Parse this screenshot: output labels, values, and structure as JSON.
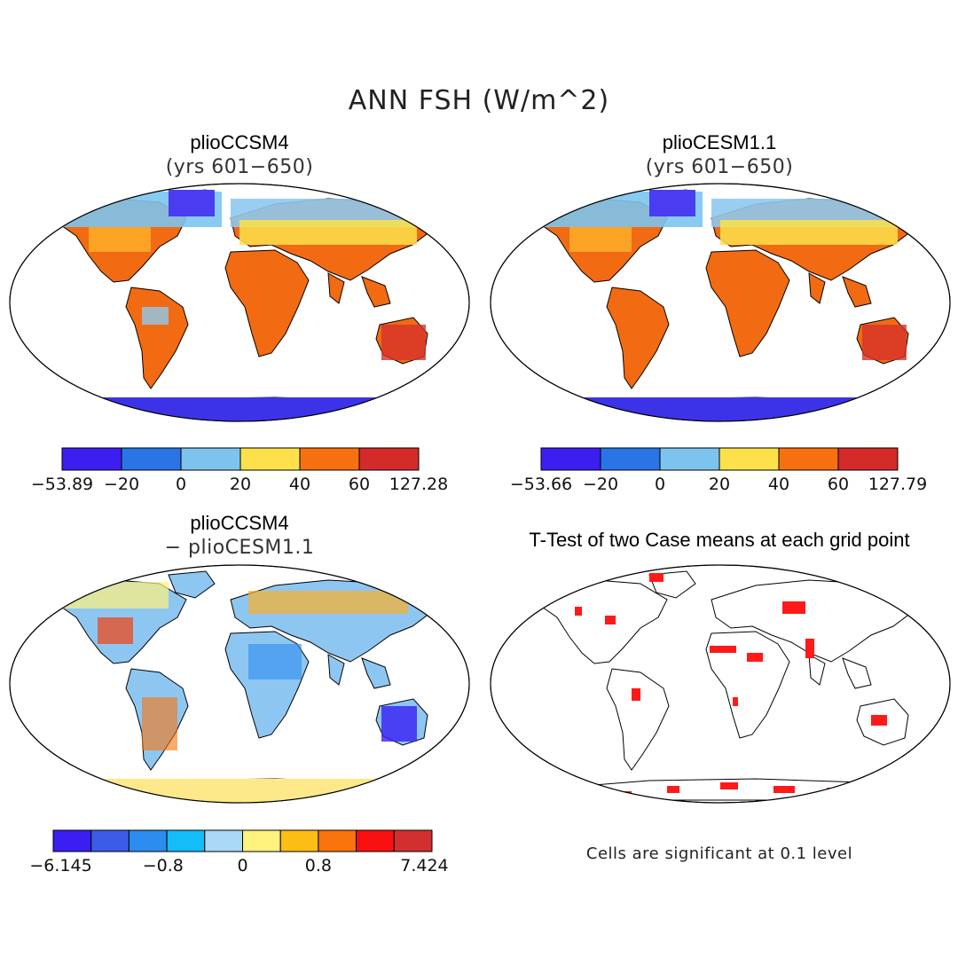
{
  "figure_title": "ANN FSH (W/m^2)",
  "panels": [
    {
      "title": "plioCCSM4",
      "subtitle": "(yrs 601−650)",
      "map": "field"
    },
    {
      "title": "plioCESM1.1",
      "subtitle": "(yrs 601−650)",
      "map": "field"
    },
    {
      "title": "plioCCSM4",
      "subtitle": "− plioCESM1.1",
      "map": "difference"
    },
    {
      "title": "T-Test of two Case means at each grid point",
      "subtitle": "",
      "map": "ttest"
    }
  ],
  "colorbars": [
    {
      "labels": [
        "−53.89",
        "−20",
        "0",
        "20",
        "40",
        "60",
        "127.28"
      ],
      "colors": [
        "#3c1ef0",
        "#2a74e6",
        "#7cc4ee",
        "#fde14b",
        "#f7700f",
        "#d52a2a"
      ]
    },
    {
      "labels": [
        "−53.66",
        "−20",
        "0",
        "20",
        "40",
        "60",
        "127.79"
      ],
      "colors": [
        "#3c1ef0",
        "#2a74e6",
        "#7cc4ee",
        "#fde14b",
        "#f7700f",
        "#d52a2a"
      ]
    },
    {
      "labels": [
        "−6.145",
        "−0.8",
        "0",
        "0.8",
        "7.424"
      ],
      "colors": [
        "#3a1ef2",
        "#3b5ce6",
        "#2c8cf0",
        "#14bdf8",
        "#a8d8f4",
        "#fff27e",
        "#fcbe14",
        "#f9740c",
        "#f81010",
        "#d23030"
      ]
    }
  ],
  "significance_note": "Cells are significant at 0.1 level",
  "colors": {
    "land_outline": "#000000",
    "significant": "#ff1a1a"
  }
}
